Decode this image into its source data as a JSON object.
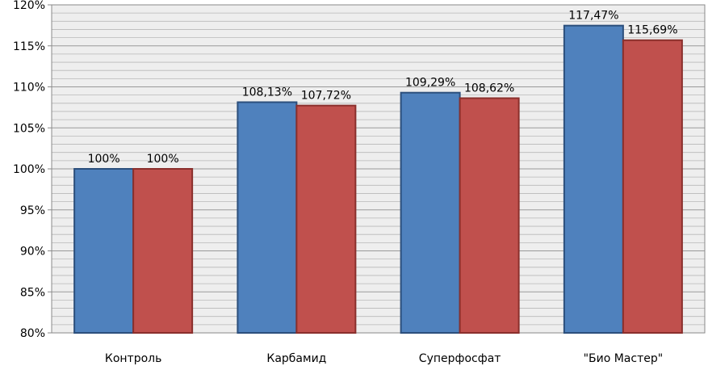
{
  "chart_data": {
    "type": "bar",
    "title": "",
    "xlabel": "",
    "ylabel": "",
    "categories": [
      "Контроль",
      "Карбамид",
      "Суперфосфат",
      "\"Био Мастер\""
    ],
    "series": [
      {
        "color": "#4f81bd",
        "values": [
          100,
          108.13,
          109.29,
          117.47
        ],
        "labels": [
          "100%",
          "108,13%",
          "109,29%",
          "117,47%"
        ]
      },
      {
        "color": "#c0504d",
        "values": [
          100,
          107.72,
          108.62,
          115.69
        ],
        "labels": [
          "100%",
          "107,72%",
          "108,62%",
          "115,69%"
        ]
      }
    ],
    "ylim": [
      80,
      120
    ],
    "yticks": [
      80,
      85,
      90,
      95,
      100,
      105,
      110,
      115,
      120
    ],
    "ytick_labels": [
      "80%",
      "85%",
      "90%",
      "95%",
      "100%",
      "105%",
      "110%",
      "115%",
      "120%"
    ],
    "grid": true,
    "legend": "none"
  }
}
